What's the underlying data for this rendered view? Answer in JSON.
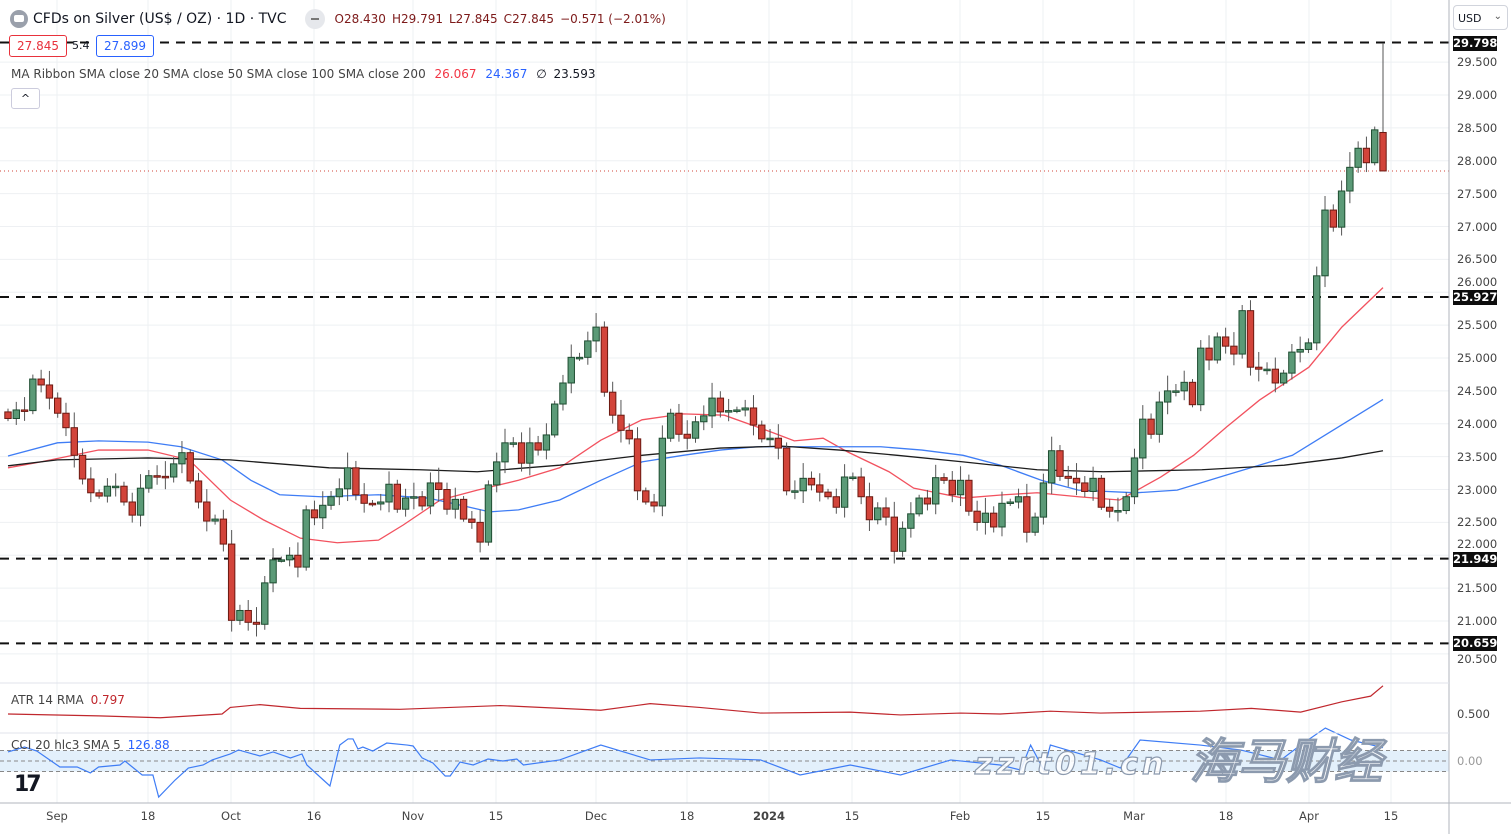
{
  "header": {
    "title": "CFDs on Silver (US$ / OZ) · 1D · TVC",
    "open_label": "O",
    "open": "28.430",
    "high_label": "H",
    "high": "29.791",
    "low_label": "L",
    "low": "27.845",
    "close_label": "C",
    "close": "27.845",
    "change": "−0.571 (−2.01%)",
    "sell_price": "27.845",
    "spread": "5.4",
    "buy_price": "27.899"
  },
  "legend": {
    "ma_ribbon": "MA Ribbon SMA close 20 SMA close 50 SMA close 100 SMA close 200",
    "sma20": "26.067",
    "sma50": "24.367",
    "sma100": "∅",
    "sma200": "23.593",
    "collapse_icon": "^"
  },
  "indicators": {
    "atr_label": "ATR 14 RMA",
    "atr_value": "0.797",
    "cci_label": "CCI 20 hlc3 SMA 5",
    "cci_value": "126.88",
    "atr_tick": "0.500",
    "cci_tick": "0.00"
  },
  "currency": "USD",
  "colors": {
    "up": "#5b9a77",
    "down": "#d2443a",
    "sma20": "#f2525f",
    "sma50": "#3f7df5",
    "sma200": "#1d1d1d",
    "atr": "#c0272d",
    "cci": "#3f7df5"
  },
  "chart_data": {
    "type": "candlestick",
    "price_ticks": [
      "29.500",
      "29.000",
      "28.500",
      "28.000",
      "27.500",
      "27.000",
      "26.500",
      "26.000",
      "25.500",
      "25.000",
      "24.500",
      "24.000",
      "23.500",
      "23.000",
      "22.500",
      "22.000",
      "21.500",
      "21.000",
      "20.500"
    ],
    "levels": [
      "29.798",
      "25.927",
      "21.949",
      "20.659"
    ],
    "last_price": 27.845,
    "time_labels": [
      "Sep",
      "18",
      "Oct",
      "16",
      "Nov",
      "15",
      "Dec",
      "18",
      "2024",
      "15",
      "Feb",
      "15",
      "Mar",
      "18",
      "Apr",
      "15"
    ],
    "closes": [
      24.08,
      24.21,
      24.2,
      24.68,
      24.59,
      24.39,
      24.16,
      23.94,
      23.52,
      23.16,
      22.95,
      22.9,
      23.05,
      23.05,
      22.81,
      22.61,
      23.02,
      23.21,
      23.2,
      23.19,
      23.39,
      23.56,
      23.13,
      22.81,
      22.52,
      22.55,
      22.17,
      21.01,
      21.16,
      20.98,
      20.95,
      21.58,
      21.93,
      21.93,
      22.0,
      21.82,
      22.69,
      22.57,
      22.76,
      22.89,
      23.01,
      23.33,
      22.92,
      22.79,
      22.78,
      22.81,
      23.08,
      22.7,
      22.87,
      22.89,
      22.75,
      23.1,
      23.0,
      22.7,
      22.85,
      22.55,
      22.5,
      22.2,
      23.07,
      23.42,
      23.71,
      23.71,
      23.4,
      23.71,
      23.6,
      23.83,
      24.3,
      24.62,
      25.01,
      25.01,
      25.26,
      25.47,
      24.48,
      24.13,
      23.9,
      23.77,
      22.98,
      22.81,
      22.75,
      23.78,
      24.16,
      23.84,
      23.78,
      24.03,
      24.12,
      24.39,
      24.18,
      24.2,
      24.21,
      24.24,
      23.98,
      23.77,
      23.78,
      23.63,
      22.98,
      22.98,
      23.17,
      23.07,
      22.96,
      22.89,
      22.73,
      23.19,
      23.19,
      22.89,
      22.54,
      22.72,
      22.58,
      22.06,
      22.41,
      22.63,
      22.87,
      22.78,
      23.18,
      23.14,
      22.92,
      23.14,
      22.67,
      22.5,
      22.64,
      22.43,
      22.79,
      22.81,
      22.89,
      22.35,
      22.58,
      23.1,
      23.59,
      23.2,
      23.17,
      23.1,
      22.97,
      23.17,
      22.73,
      22.67,
      22.68,
      22.89,
      23.48,
      24.07,
      23.84,
      24.33,
      24.5,
      24.5,
      24.63,
      24.29,
      25.15,
      24.97,
      25.32,
      25.18,
      25.06,
      25.72,
      24.86,
      24.83,
      24.83,
      24.62,
      24.77,
      25.09,
      25.13,
      25.23,
      26.25,
      27.25,
      26.99,
      27.54,
      27.9,
      28.19,
      27.97,
      28.47,
      27.845
    ],
    "last_candle": {
      "open": 28.43,
      "high": 29.791,
      "low": 27.845,
      "close": 27.845
    },
    "sma20": [
      [
        0,
        23.33
      ],
      [
        4,
        23.42
      ],
      [
        11,
        23.6
      ],
      [
        17,
        23.6
      ],
      [
        22,
        23.45
      ],
      [
        27,
        22.84
      ],
      [
        31,
        22.54
      ],
      [
        35.5,
        22.26
      ],
      [
        40,
        22.19
      ],
      [
        45,
        22.23
      ],
      [
        48,
        22.46
      ],
      [
        52.5,
        22.84
      ],
      [
        57,
        22.99
      ],
      [
        62,
        23.14
      ],
      [
        67,
        23.33
      ],
      [
        72,
        23.75
      ],
      [
        77,
        24.06
      ],
      [
        82,
        24.15
      ],
      [
        87,
        24.13
      ],
      [
        91,
        23.95
      ],
      [
        93,
        23.86
      ],
      [
        95.5,
        23.74
      ],
      [
        99,
        23.78
      ],
      [
        102,
        23.57
      ],
      [
        107,
        23.27
      ],
      [
        110,
        23.02
      ],
      [
        116,
        22.87
      ],
      [
        121,
        22.92
      ],
      [
        125,
        22.95
      ],
      [
        130,
        22.89
      ],
      [
        135,
        22.84
      ],
      [
        140,
        23.19
      ],
      [
        144,
        23.52
      ],
      [
        148,
        23.95
      ],
      [
        152,
        24.36
      ],
      [
        158,
        24.86
      ],
      [
        162,
        25.47
      ],
      [
        167,
        26.07
      ]
    ],
    "sma50": [
      [
        0,
        23.51
      ],
      [
        6,
        23.71
      ],
      [
        11,
        23.74
      ],
      [
        17,
        23.72
      ],
      [
        21,
        23.65
      ],
      [
        26,
        23.45
      ],
      [
        29.5,
        23.14
      ],
      [
        33,
        22.92
      ],
      [
        38,
        22.89
      ],
      [
        45,
        22.92
      ],
      [
        51,
        22.87
      ],
      [
        55,
        22.76
      ],
      [
        58.5,
        22.66
      ],
      [
        62,
        22.69
      ],
      [
        67,
        22.84
      ],
      [
        72,
        23.14
      ],
      [
        77,
        23.42
      ],
      [
        82,
        23.52
      ],
      [
        86.5,
        23.6
      ],
      [
        91,
        23.65
      ],
      [
        106,
        23.65
      ],
      [
        111,
        23.6
      ],
      [
        116,
        23.52
      ],
      [
        120.5,
        23.37
      ],
      [
        125.5,
        23.14
      ],
      [
        130,
        22.99
      ],
      [
        137,
        22.95
      ],
      [
        142,
        22.99
      ],
      [
        148,
        23.22
      ],
      [
        156,
        23.52
      ],
      [
        160,
        23.83
      ],
      [
        167,
        24.37
      ]
    ],
    "sma200": [
      [
        0,
        23.36
      ],
      [
        6,
        23.45
      ],
      [
        17,
        23.48
      ],
      [
        27,
        23.45
      ],
      [
        39,
        23.33
      ],
      [
        50,
        23.3
      ],
      [
        57,
        23.27
      ],
      [
        67,
        23.37
      ],
      [
        77,
        23.52
      ],
      [
        86.5,
        23.63
      ],
      [
        94,
        23.66
      ],
      [
        101,
        23.6
      ],
      [
        108,
        23.52
      ],
      [
        116,
        23.42
      ],
      [
        125,
        23.3
      ],
      [
        133,
        23.27
      ],
      [
        145,
        23.3
      ],
      [
        155,
        23.37
      ],
      [
        162,
        23.48
      ],
      [
        167,
        23.59
      ]
    ],
    "atr": [
      [
        0,
        0.5
      ],
      [
        11,
        0.48
      ],
      [
        18.5,
        0.46
      ],
      [
        26,
        0.5
      ],
      [
        27,
        0.57
      ],
      [
        30.6,
        0.6
      ],
      [
        35.5,
        0.56
      ],
      [
        47.6,
        0.55
      ],
      [
        59.8,
        0.59
      ],
      [
        72,
        0.54
      ],
      [
        78,
        0.61
      ],
      [
        84,
        0.57
      ],
      [
        91.4,
        0.51
      ],
      [
        102.3,
        0.52
      ],
      [
        108.4,
        0.49
      ],
      [
        115.7,
        0.51
      ],
      [
        120.5,
        0.5
      ],
      [
        126.6,
        0.53
      ],
      [
        132.7,
        0.51
      ],
      [
        144.8,
        0.53
      ],
      [
        151,
        0.56
      ],
      [
        157,
        0.52
      ],
      [
        162,
        0.63
      ],
      [
        165.5,
        0.69
      ],
      [
        167,
        0.8
      ]
    ],
    "cci": [
      [
        0,
        86
      ],
      [
        2,
        133
      ],
      [
        3.5,
        95
      ],
      [
        6.3,
        -57
      ],
      [
        8.4,
        -57
      ],
      [
        10,
        -114
      ],
      [
        11,
        -57
      ],
      [
        13.6,
        -38
      ],
      [
        14.2,
        0
      ],
      [
        16.3,
        -133
      ],
      [
        17.6,
        -133
      ],
      [
        18.3,
        -343
      ],
      [
        20.3,
        -181
      ],
      [
        21.9,
        -67
      ],
      [
        23.7,
        -38
      ],
      [
        24.8,
        10
      ],
      [
        27,
        67
      ],
      [
        28,
        105
      ],
      [
        30.6,
        48
      ],
      [
        32.2,
        86
      ],
      [
        34.3,
        29
      ],
      [
        35.7,
        67
      ],
      [
        36.3,
        -38
      ],
      [
        38.3,
        -181
      ],
      [
        39.1,
        -238
      ],
      [
        40.3,
        152
      ],
      [
        41.3,
        210
      ],
      [
        41.9,
        210
      ],
      [
        42.5,
        114
      ],
      [
        43.1,
        133
      ],
      [
        44.3,
        95
      ],
      [
        46,
        171
      ],
      [
        48.5,
        152
      ],
      [
        49.2,
        143
      ],
      [
        50.3,
        29
      ],
      [
        51.6,
        -19
      ],
      [
        53.1,
        -143
      ],
      [
        53.7,
        -143
      ],
      [
        54.9,
        -10
      ],
      [
        56.5,
        -38
      ],
      [
        58.3,
        19
      ],
      [
        60.1,
        0
      ],
      [
        61.8,
        19
      ],
      [
        62.6,
        -38
      ],
      [
        67,
        10
      ],
      [
        72,
        152
      ],
      [
        78,
        10
      ],
      [
        84,
        29
      ],
      [
        91.4,
        10
      ],
      [
        96.2,
        -133
      ],
      [
        102.3,
        -38
      ],
      [
        108.4,
        -133
      ],
      [
        114.5,
        10
      ],
      [
        120.5,
        -38
      ],
      [
        123,
        -86
      ],
      [
        124.2,
        152
      ],
      [
        125.8,
        -86
      ],
      [
        126.6,
        152
      ],
      [
        127.8,
        124
      ],
      [
        132.7,
        10
      ],
      [
        135.1,
        -67
      ],
      [
        137.5,
        200
      ],
      [
        144.8,
        152
      ],
      [
        149.7,
        105
      ],
      [
        154.6,
        10
      ],
      [
        157,
        152
      ],
      [
        160,
        314
      ],
      [
        163.1,
        200
      ],
      [
        167,
        127
      ]
    ]
  },
  "watermark": {
    "cn": "海马财经",
    "url": "zzrt01.cn"
  }
}
